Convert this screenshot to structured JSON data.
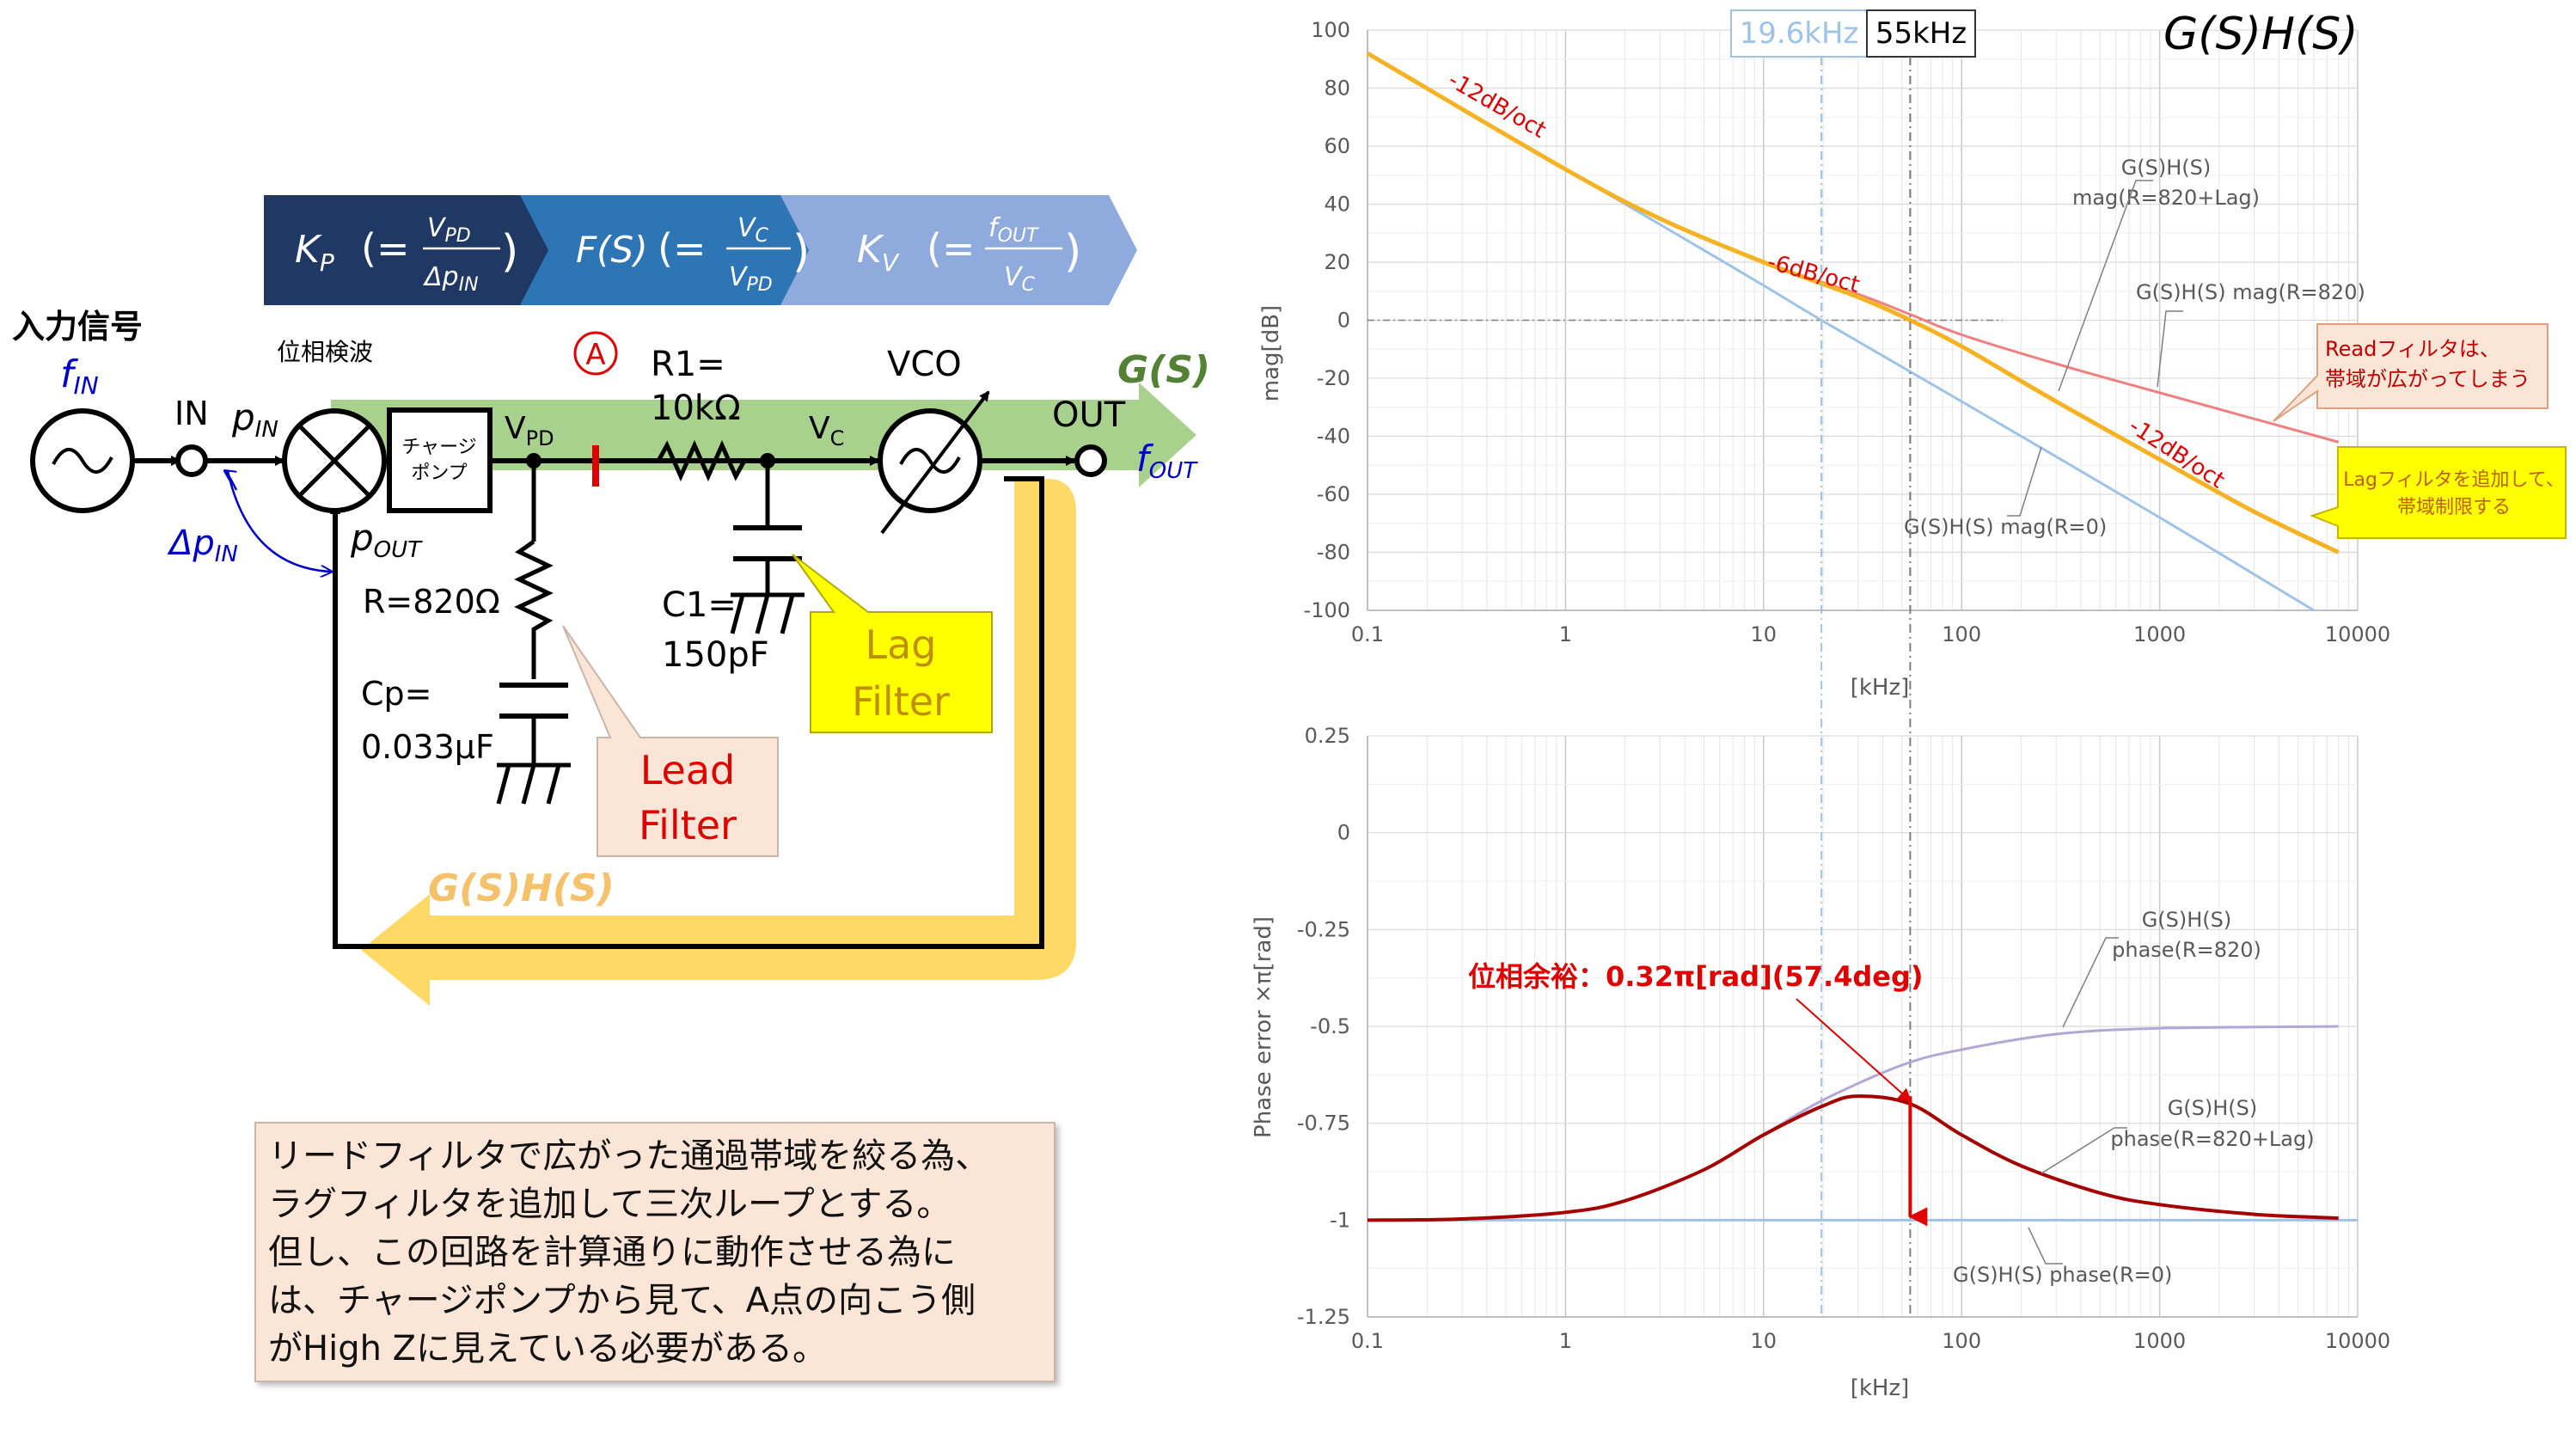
{
  "circuit": {
    "input_label": "入力信号",
    "f_in": "f",
    "f_in_sub": "IN",
    "in_label": "IN",
    "p_in": "p",
    "p_in_sub": "IN",
    "delta_p_in": "Δp",
    "delta_p_in_sub": "IN",
    "p_out": "p",
    "p_out_sub": "OUT",
    "phase_detector": "位相検波",
    "charge_pump_1": "チャージ",
    "charge_pump_2": "ポンプ",
    "v_pd": "V",
    "v_pd_sub": "PD",
    "point_a": "A",
    "r1_1": "R1=",
    "r1_2": "10kΩ",
    "vc": "V",
    "vc_sub": "C",
    "vco": "VCO",
    "out_label": "OUT",
    "f_out": "f",
    "f_out_sub": "OUT",
    "r_value": "R=820Ω",
    "cp_1": "Cp=",
    "cp_2": "0.033μF",
    "c1_1": "C1=",
    "c1_2": "150pF",
    "lead_1": "Lead",
    "lead_2": "Filter",
    "lag_1": "Lag",
    "lag_2": "Filter",
    "gs": "G(S)",
    "gshs": "G(S)H(S)",
    "chevron_kp": "K",
    "chevron_kp_sub": "P",
    "chevron_kp_eq": "(=",
    "chevron_kp_num": "V",
    "chevron_kp_num_sub": "PD",
    "chevron_kp_den": "Δp",
    "chevron_kp_den_sub": "IN",
    "chevron_fs": "F(S)",
    "chevron_fs_num": "V",
    "chevron_fs_num_sub": "C",
    "chevron_fs_den": "V",
    "chevron_fs_den_sub": "PD",
    "chevron_kv": "K",
    "chevron_kv_sub": "V",
    "chevron_kv_num": "f",
    "chevron_kv_num_sub": "OUT",
    "chevron_kv_den": "V",
    "chevron_kv_den_sub": "C",
    "chevron_close": ")"
  },
  "note": {
    "lines": [
      "リードフィルタで広がった通過帯域を絞る為、",
      "ラグフィルタを追加して三次ループとする。",
      "但し、この回路を計算通りに動作させる為に",
      "は、チャージポンプから見て、A点の向こう側",
      "がHigh Zに見えている必要がある。"
    ]
  },
  "charts": {
    "title": "G(S)H(S)",
    "marker_1": "19.6kHz",
    "marker_2": "55kHz",
    "colors": {
      "r0": "#9dc3e6",
      "r820": "#f08080",
      "lag": "#f5b324",
      "phase_r820": "#b4a7d6",
      "phase_lag": "#a50000",
      "red": "#e00000"
    }
  },
  "chart_data": [
    {
      "type": "line",
      "title": "G(S)H(S)",
      "xlabel": "[kHz]",
      "ylabel": "mag[dB]",
      "x_scale": "log",
      "xlim": [
        0.1,
        10000
      ],
      "ylim": [
        -100,
        100
      ],
      "x_ticks": [
        "0.1",
        "1",
        "10",
        "100",
        "1000",
        "10000"
      ],
      "y_ticks": [
        "100",
        "80",
        "60",
        "40",
        "20",
        "0",
        "-20",
        "-40",
        "-60",
        "-80",
        "-100"
      ],
      "grid": true,
      "series": [
        {
          "name": "G(S)H(S) mag(R=0)",
          "x": [
            0.1,
            1,
            3,
            10,
            19.6,
            100,
            1000,
            6000
          ],
          "y": [
            92,
            52,
            33,
            12,
            0,
            -28,
            -68,
            -100
          ]
        },
        {
          "name": "G(S)H(S) mag(R=820)",
          "x": [
            0.1,
            1,
            3,
            10,
            30,
            55,
            100,
            300,
            1000,
            8000
          ],
          "y": [
            92,
            52,
            35,
            20,
            9,
            2,
            -5,
            -15,
            -25,
            -42
          ]
        },
        {
          "name": "G(S)H(S) mag(R=820+Lag)",
          "x": [
            0.1,
            1,
            3,
            10,
            30,
            55,
            100,
            300,
            1000,
            3000,
            8000
          ],
          "y": [
            92,
            52,
            35,
            20,
            8,
            0,
            -9,
            -28,
            -48,
            -66,
            -80
          ]
        }
      ],
      "annotations": [
        "-12dB/oct",
        "-6dB/oct",
        "-12dB/oct",
        "Readフィルタは、",
        "帯域が広がってしまう",
        "Lagフィルタを追加して、",
        "帯域制限する"
      ]
    },
    {
      "type": "line",
      "xlabel": "[kHz]",
      "ylabel": "Phase error ×π[rad]",
      "x_scale": "log",
      "xlim": [
        0.1,
        10000
      ],
      "ylim": [
        -1.25,
        0.25
      ],
      "x_ticks": [
        "0.1",
        "1",
        "10",
        "100",
        "1000",
        "10000"
      ],
      "y_ticks": [
        "0.25",
        "0",
        "-0.25",
        "-0.5",
        "-0.75",
        "-1",
        "-1.25"
      ],
      "grid": true,
      "series": [
        {
          "name": "G(S)H(S) phase(R=0)",
          "x": [
            0.1,
            10000
          ],
          "y": [
            -1,
            -1
          ]
        },
        {
          "name": "G(S)H(S) phase(R=820)",
          "x": [
            0.1,
            0.3,
            1,
            2,
            5,
            10,
            20,
            50,
            100,
            300,
            1000,
            8000
          ],
          "y": [
            -1,
            -0.997,
            -0.98,
            -0.95,
            -0.87,
            -0.78,
            -0.69,
            -0.6,
            -0.56,
            -0.52,
            -0.505,
            -0.5
          ]
        },
        {
          "name": "G(S)H(S) phase(R=820+Lag)",
          "x": [
            0.1,
            0.3,
            1,
            2,
            5,
            10,
            20,
            30,
            55,
            100,
            200,
            500,
            1000,
            3000,
            8000
          ],
          "y": [
            -1,
            -0.997,
            -0.98,
            -0.95,
            -0.87,
            -0.78,
            -0.705,
            -0.68,
            -0.7,
            -0.78,
            -0.86,
            -0.93,
            -0.96,
            -0.985,
            -0.995
          ]
        }
      ],
      "annotations": [
        "位相余裕：0.32π[rad](57.4deg)"
      ]
    }
  ],
  "plot_labels": {
    "mag_title": "G(S)H(S)",
    "mag_lag_1": "G(S)H(S)",
    "mag_lag_2": "mag(R=820+Lag)",
    "mag_r820": "G(S)H(S) mag(R=820)",
    "mag_r0": "G(S)H(S) mag(R=0)",
    "slope_1": "-12dB/oct",
    "slope_2": "-6dB/oct",
    "slope_3": "-12dB/oct",
    "read_1": "Readフィルタは、",
    "read_2": "帯域が広がってしまう",
    "lag_note_1": "Lagフィルタを追加して、",
    "lag_note_2": "帯域制限する",
    "mag_ylabel": "mag[dB]",
    "xlabel": "[kHz]",
    "ph_ylabel": "Phase error ×π[rad]",
    "ph_r820_1": "G(S)H(S)",
    "ph_r820_2": "phase(R=820)",
    "ph_lag_1": "G(S)H(S)",
    "ph_lag_2": "phase(R=820+Lag)",
    "ph_r0": "G(S)H(S) phase(R=0)",
    "margin": "位相余裕：0.32π[rad](57.4deg)"
  }
}
